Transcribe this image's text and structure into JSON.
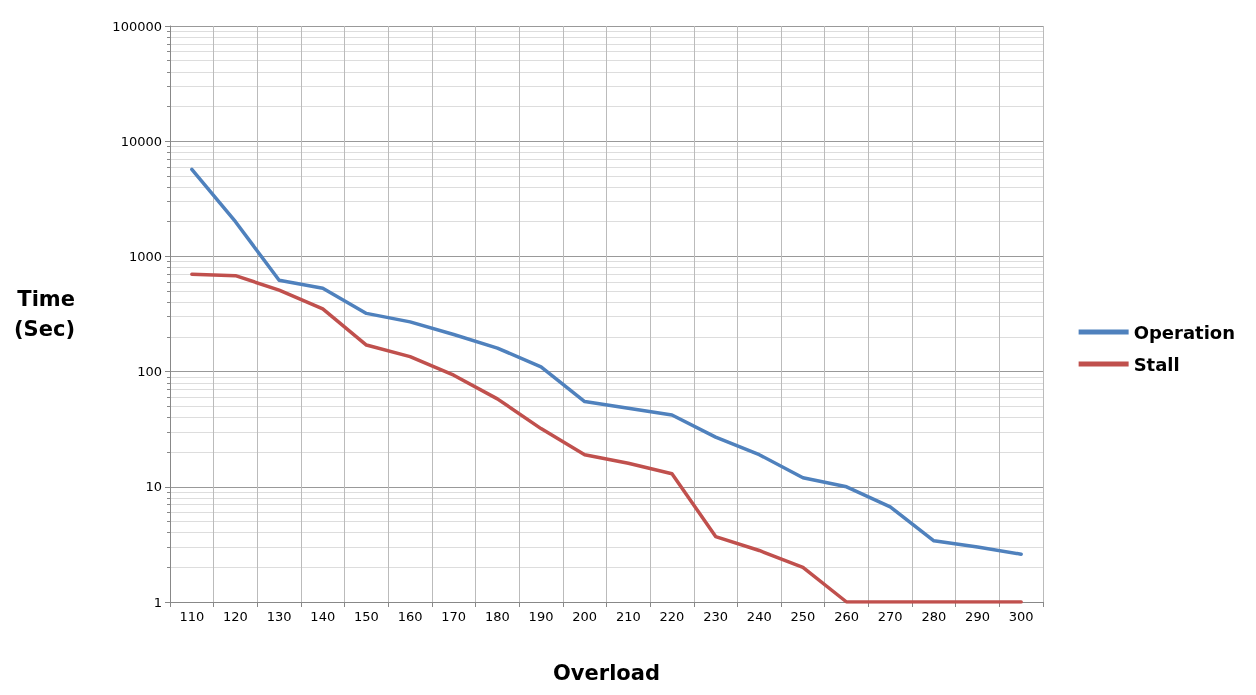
{
  "chart_data": {
    "type": "line",
    "xlabel": "Overload",
    "ylabel": "Time\n(Sec)",
    "categories": [
      "110",
      "120",
      "130",
      "140",
      "150",
      "160",
      "170",
      "180",
      "190",
      "200",
      "210",
      "220",
      "230",
      "240",
      "250",
      "260",
      "270",
      "280",
      "290",
      "300"
    ],
    "series": [
      {
        "name": "Operation",
        "color": "#4f81bd",
        "values": [
          5700,
          2000,
          620,
          530,
          320,
          270,
          210,
          160,
          110,
          55,
          48,
          42,
          27,
          19,
          12,
          10,
          6.7,
          3.4,
          3,
          2.6
        ]
      },
      {
        "name": "Stall",
        "color": "#c0504d",
        "values": [
          700,
          680,
          510,
          350,
          170,
          135,
          93,
          58,
          32,
          19,
          16,
          13,
          3.7,
          2.8,
          2,
          1,
          1,
          1,
          1,
          1
        ]
      }
    ],
    "log": "y",
    "ylim": [
      1,
      100000
    ],
    "yticks": [
      1,
      10,
      100,
      1000,
      10000,
      100000
    ],
    "grid": true,
    "legend": "right",
    "marker": "none",
    "line_style": "solid"
  }
}
